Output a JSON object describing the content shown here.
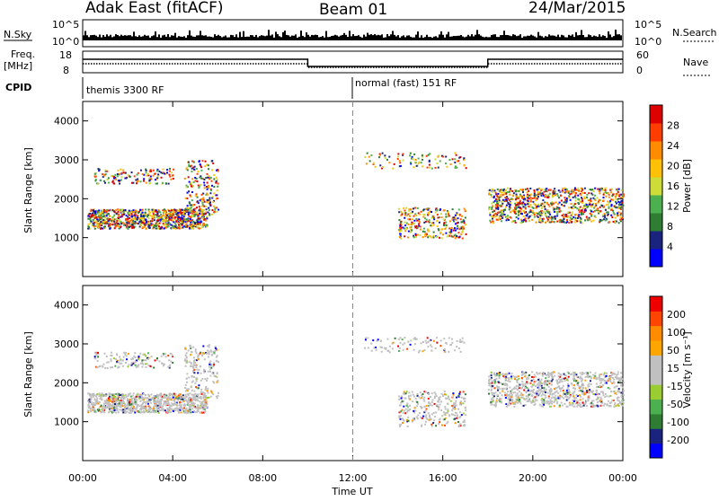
{
  "header": {
    "radar": "Adak East (fitACF)",
    "beam": "Beam 01",
    "date": "24/Mar/2015"
  },
  "strip": {
    "nsky_label": "N.Sky",
    "nsearch_label": "N.Search",
    "freq_label": "Freq.",
    "mhz_label": "[MHz]",
    "nave_label": "Nave",
    "cpid_label": "CPID",
    "left_ticks_top": [
      "10^5",
      "10^0"
    ],
    "right_ticks_top": [
      "10^5",
      "10^0"
    ],
    "left_ticks_freq": [
      "18",
      "8"
    ],
    "right_ticks_nave": [
      "60",
      "0"
    ]
  },
  "cpid": {
    "segments": [
      {
        "label": "themis 3300 RF",
        "start_hour": 0
      },
      {
        "label": "normal (fast) 151 RF",
        "start_hour": 12
      }
    ]
  },
  "colors": {
    "power_scale": [
      "#0000ff",
      "#1a237e",
      "#2e7d32",
      "#4caf50",
      "#cddc39",
      "#ffc107",
      "#ff8c00",
      "#ff3d00",
      "#dd0000"
    ],
    "velocity_scale": [
      "#0000ff",
      "#1a237e",
      "#2e7d32",
      "#4caf50",
      "#9acd32",
      "#c0c0c0",
      "#c0c0c0",
      "#ffa500",
      "#ff8c00",
      "#ff4500",
      "#ee0000"
    ]
  },
  "chart_data": [
    {
      "type": "heatmap",
      "name": "power",
      "ylabel": "Slant Range [km]",
      "x_ticks": [
        "00:00",
        "04:00",
        "08:00",
        "12:00",
        "16:00",
        "20:00",
        "00:00"
      ],
      "y_ticks": [
        1000,
        2000,
        3000,
        4000
      ],
      "ylim": [
        0,
        4500
      ],
      "xlim_hours": [
        0,
        24
      ],
      "colorbar_label": "Power [dB]",
      "colorbar_ticks": [
        "4",
        "8",
        "12",
        "16",
        "20",
        "24",
        "28"
      ]
    },
    {
      "type": "heatmap",
      "name": "velocity",
      "ylabel": "Slant Range [km]",
      "xlabel": "Time UT",
      "x_ticks": [
        "00:00",
        "04:00",
        "08:00",
        "12:00",
        "16:00",
        "20:00",
        "00:00"
      ],
      "y_ticks": [
        1000,
        2000,
        3000,
        4000
      ],
      "ylim": [
        0,
        4500
      ],
      "xlim_hours": [
        0,
        24
      ],
      "colorbar_label": "Velocity [m s⁻¹]",
      "colorbar_ticks": [
        "200",
        "100",
        "50",
        "15",
        "-15",
        "-50",
        "-100",
        "-200"
      ]
    }
  ]
}
